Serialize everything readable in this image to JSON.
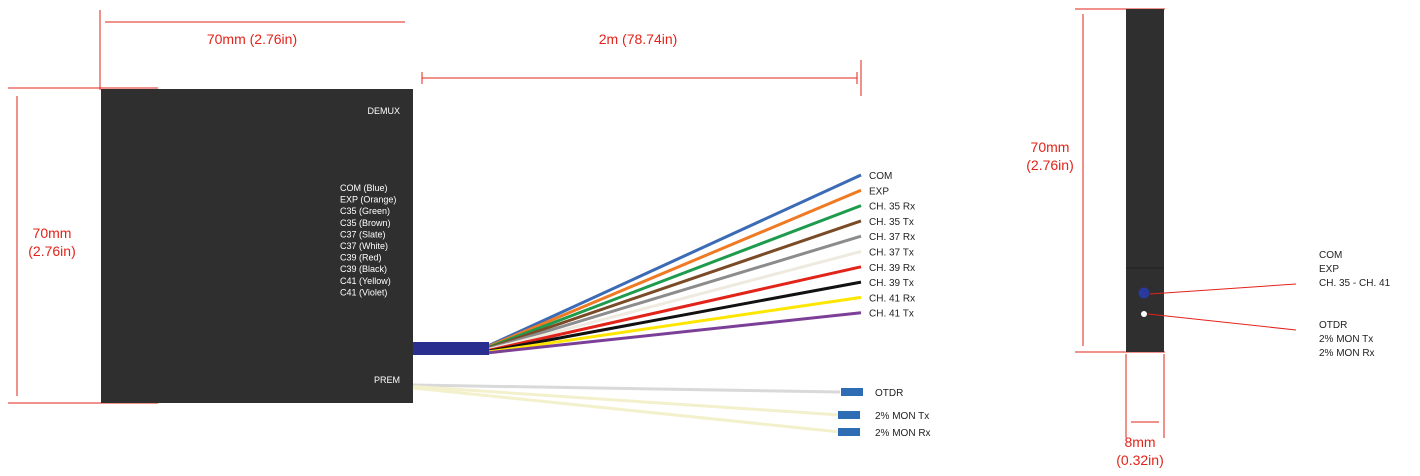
{
  "dimensions": {
    "width": "70mm (2.76in)",
    "cable_length": "2m (78.74in)",
    "height_line1": "70mm",
    "height_line2": "(2.76in)",
    "side_height_line1": "70mm",
    "side_height_line2": "(2.76in)",
    "depth_line1": "8mm",
    "depth_line2": "(0.32in)"
  },
  "module": {
    "demux_label": "DEMUX",
    "prem_label": "PREM",
    "fiber_colors": [
      "COM (Blue)",
      "EXP (Orange)",
      "C35 (Green)",
      "C35 (Brown)",
      "C37 (Slate)",
      "C37 (White)",
      "C39 (Red)",
      "C39 (Black)",
      "C41 (Yellow)",
      "C41 (Violet)"
    ]
  },
  "fibers": [
    {
      "label": "COM",
      "color": "#3b6bb5"
    },
    {
      "label": "EXP",
      "color": "#f07a23"
    },
    {
      "label": "CH. 35 Rx",
      "color": "#1e9b4c"
    },
    {
      "label": "CH. 35 Tx",
      "color": "#7a4b26"
    },
    {
      "label": "CH. 37 Rx",
      "color": "#8c8c8c"
    },
    {
      "label": "CH. 37 Tx",
      "color": "#eeeadf"
    },
    {
      "label": "CH. 39 Rx",
      "color": "#e2231a"
    },
    {
      "label": "CH. 39 Tx",
      "color": "#111111"
    },
    {
      "label": "CH. 41 Rx",
      "color": "#ffe600"
    },
    {
      "label": "CH. 41 Tx",
      "color": "#7b3f98"
    }
  ],
  "prem_fibers": [
    {
      "label": "OTDR",
      "color": "#d9d9d9"
    },
    {
      "label": "2% MON Tx",
      "color": "#f3f0cc"
    },
    {
      "label": "2% MON Rx",
      "color": "#f3f0cc"
    }
  ],
  "side_view": {
    "port1_lines": [
      "COM",
      "EXP",
      "CH. 35 - CH. 41"
    ],
    "port2_lines": [
      "OTDR",
      "2% MON Tx",
      "2% MON Rx"
    ]
  },
  "colors": {
    "dimension": "#e2231a",
    "module_body": "#2f2f2f",
    "boot": "#2a2f8f",
    "connector": "#2e6db4",
    "port_blue": "#2a3a9c",
    "port_white": "#ffffff"
  }
}
